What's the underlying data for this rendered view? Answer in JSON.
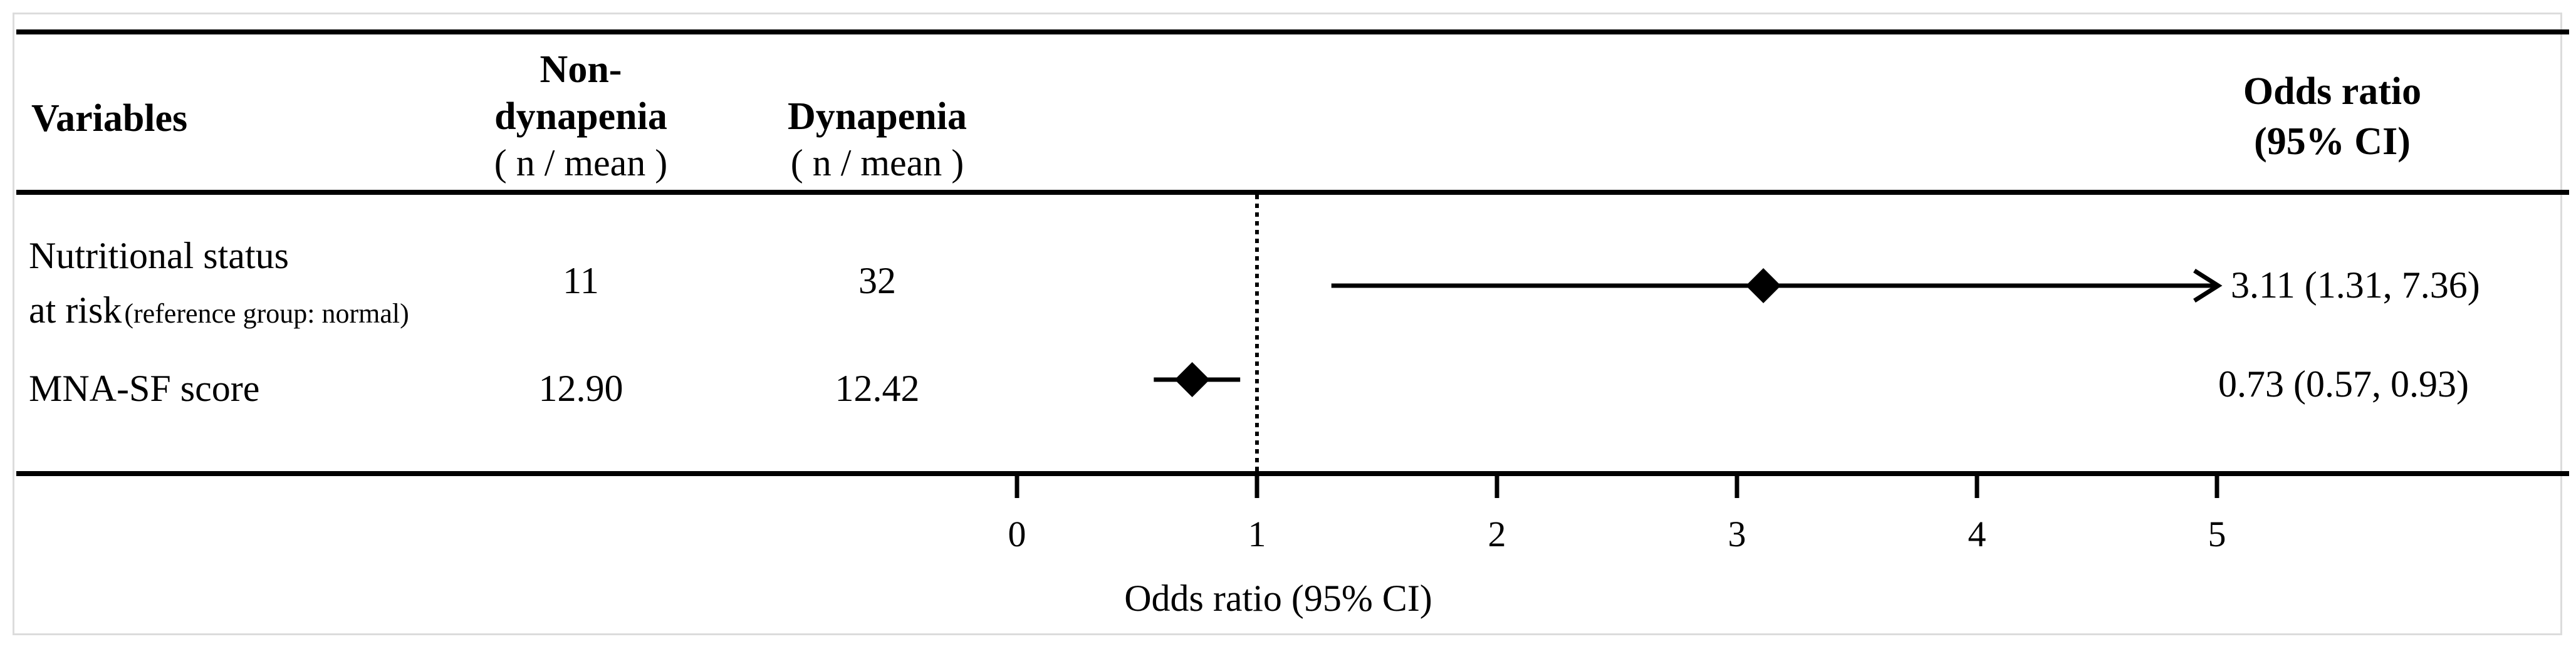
{
  "header": {
    "variables": "Variables",
    "non_dynapenia_line1": "Non-",
    "non_dynapenia_line2": "dynapenia",
    "non_dynapenia_sub": "( n / mean )",
    "dynapenia": "Dynapenia",
    "dynapenia_sub": "( n / mean )",
    "odds_ratio_line1": "Odds ratio",
    "odds_ratio_line2": "(95% CI)"
  },
  "rows": [
    {
      "label_line1": "Nutritional status",
      "label_line2": "at risk",
      "label_note": "(reference group: normal)",
      "non_dynapenia": "11",
      "dynapenia": "32",
      "or_text": "3.11 (1.31, 7.36)"
    },
    {
      "label_line1": "MNA-SF score",
      "label_line2": "",
      "label_note": "",
      "non_dynapenia": "12.90",
      "dynapenia": "12.42",
      "or_text": "0.73 (0.57, 0.93)"
    }
  ],
  "chart_data": {
    "type": "forest",
    "xlabel": "Odds ratio (95% CI)",
    "ticks": [
      0,
      1,
      2,
      3,
      4,
      5
    ],
    "tick_labels": [
      "0",
      "1",
      "2",
      "3",
      "4",
      "5"
    ],
    "xlim": [
      0,
      5
    ],
    "reference_line": 1,
    "points": [
      {
        "label": "Nutritional status at risk",
        "or": 3.11,
        "lower": 1.31,
        "upper": 7.36,
        "upper_truncated": true
      },
      {
        "label": "MNA-SF score",
        "or": 0.73,
        "lower": 0.57,
        "upper": 0.93,
        "upper_truncated": false
      }
    ]
  }
}
